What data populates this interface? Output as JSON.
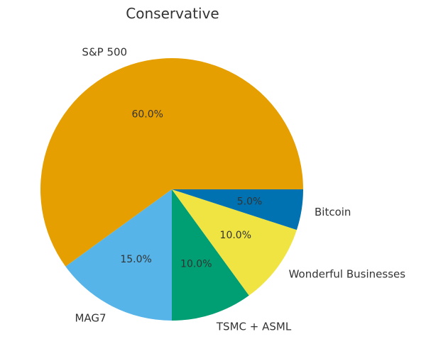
{
  "chart_data": {
    "type": "pie",
    "title": "Conservative",
    "labels": [
      "S&P 500",
      "MAG7",
      "TSMC + ASML",
      "Wonderful Businesses",
      "Bitcoin"
    ],
    "values": [
      60.0,
      15.0,
      10.0,
      10.0,
      5.0
    ],
    "pct_labels": [
      "60.0%",
      "15.0%",
      "10.0%",
      "10.0%",
      "5.0%"
    ],
    "colors": [
      "#E69F00",
      "#56B4E9",
      "#009E73",
      "#F0E442",
      "#0072B2"
    ],
    "start_angle": 0,
    "direction": "counterclockwise",
    "legend": false,
    "background_color": "#ffffff",
    "text_color": "#333333"
  }
}
